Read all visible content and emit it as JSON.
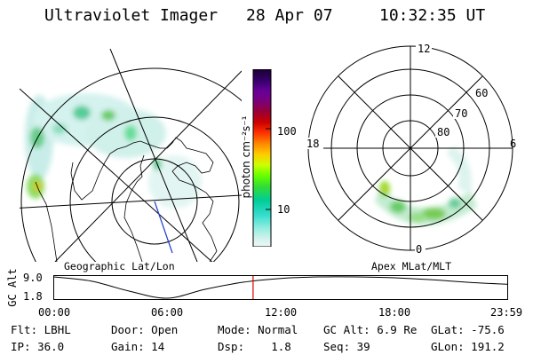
{
  "header": {
    "title": "Ultraviolet Imager",
    "date": "28 Apr 07",
    "time": "10:32:35 UT"
  },
  "left_panel": {
    "label": "Geographic Lat/Lon"
  },
  "colorbar": {
    "label": "photon cm⁻²s⁻¹",
    "ticks": [
      "100",
      "10"
    ],
    "colors": [
      "#1a0033",
      "#330066",
      "#660099",
      "#7a007a",
      "#990033",
      "#cc0000",
      "#ff3300",
      "#ff8800",
      "#ffcc00",
      "#ccff00",
      "#66ff00",
      "#33dd33",
      "#00cc99",
      "#33ddcc",
      "#99eee0",
      "#d6f2ee",
      "#eef8f6"
    ]
  },
  "right_panel": {
    "label": "Apex MLat/MLT",
    "mlt_labels": [
      "12",
      "18",
      "6",
      "0"
    ],
    "mlat_labels": [
      "60",
      "70",
      "80"
    ]
  },
  "chart_data": {
    "type": "line",
    "title": "",
    "ylabel": "GC Alt",
    "yticks": [
      "9.0",
      "1.8"
    ],
    "ylim": [
      1.8,
      9.0
    ],
    "xlim": [
      "00:00",
      "23:59"
    ],
    "xticks": [
      "00:00",
      "06:00",
      "12:00",
      "18:00",
      "23:59"
    ],
    "series": [
      {
        "x": [
          "00:00",
          "02:00",
          "04:00",
          "06:00",
          "08:00",
          "10:00",
          "12:00",
          "14:00",
          "16:00",
          "18:00",
          "20:00",
          "22:00",
          "23:59"
        ],
        "y": [
          9.0,
          7.6,
          4.2,
          1.8,
          4.8,
          7.2,
          8.5,
          9.0,
          9.0,
          8.7,
          8.0,
          7.1,
          6.5
        ]
      }
    ],
    "marker_time": "10:32"
  },
  "status": {
    "flt_label": "Flt:",
    "flt_value": "LBHL",
    "ip_label": "IP:",
    "ip_value": "36.0",
    "door_label": "Door:",
    "door_value": "Open",
    "gain_label": "Gain:",
    "gain_value": "14",
    "mode_label": "Mode:",
    "mode_value": "Normal",
    "dsp_label": "Dsp:",
    "dsp_value": "1.8",
    "gcalt_label": "GC Alt:",
    "gcalt_value": "6.9 Re",
    "seq_label": "Seq:",
    "seq_value": "39",
    "glat_label": "GLat:",
    "glat_value": "-75.6",
    "glon_label": "GLon:",
    "glon_value": "191.2"
  }
}
